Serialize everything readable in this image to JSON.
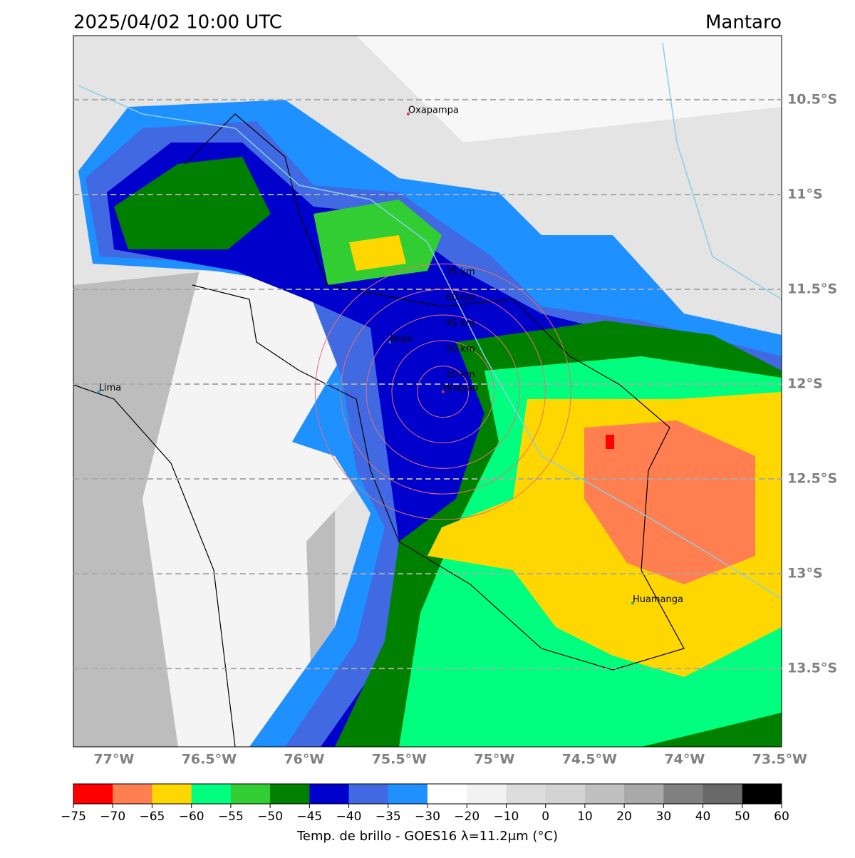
{
  "map": {
    "title": "2025/04/02 10:00 UTC",
    "region": "Mantaro",
    "xlim": [
      -77.213,
      -73.49
    ],
    "ylim": [
      -13.913,
      -10.162
    ],
    "xticks": [
      {
        "value": -77,
        "label": "77°W"
      },
      {
        "value": -76.5,
        "label": "76.5°W"
      },
      {
        "value": -76,
        "label": "76°W"
      },
      {
        "value": -75.5,
        "label": "75.5°W"
      },
      {
        "value": -75,
        "label": "75°W"
      },
      {
        "value": -74.5,
        "label": "74.5°W"
      },
      {
        "value": -74,
        "label": "74°W"
      },
      {
        "value": -73.5,
        "label": "73.5°W"
      }
    ],
    "yticks": [
      {
        "value": -10.5,
        "label": "10.5°S"
      },
      {
        "value": -11,
        "label": "11°S"
      },
      {
        "value": -11.5,
        "label": "11.5°S"
      },
      {
        "value": -12,
        "label": "12°S"
      },
      {
        "value": -12.5,
        "label": "12.5°S"
      },
      {
        "value": -13,
        "label": "13°S"
      },
      {
        "value": -13.5,
        "label": "13.5°S"
      }
    ],
    "grid": true,
    "places": [
      {
        "name": "Oxapampa",
        "lon": -75.453,
        "lat": -10.575,
        "color": "#e03030"
      },
      {
        "name": "Jauja",
        "lon": -75.547,
        "lat": -11.78,
        "color": "#3aa0a0"
      },
      {
        "name": "Lima",
        "lon": -77.079,
        "lat": -12.04,
        "color": "#3aa0a0"
      },
      {
        "name": "Huayao",
        "lon": -75.27,
        "lat": -12.04,
        "color": "#e03030"
      },
      {
        "name": "Huamanga",
        "lon": -74.273,
        "lat": -13.155,
        "color": "#3aa0a0"
      }
    ],
    "rings": [
      {
        "value": 15,
        "label": "15 km"
      },
      {
        "value": 30,
        "label": "30 km"
      },
      {
        "value": 45,
        "label": "45 km"
      },
      {
        "value": 60,
        "label": "60 km"
      },
      {
        "value": 75,
        "label": "75 km"
      }
    ],
    "ring_color": "#e87070"
  },
  "colorbar": {
    "label": "Temp. de brillo - GOES16 λ=11.2μm (°C)",
    "ticks": [
      {
        "value": -75,
        "label": "−75"
      },
      {
        "value": -70,
        "label": "−70"
      },
      {
        "value": -65,
        "label": "−65"
      },
      {
        "value": -60,
        "label": "−60"
      },
      {
        "value": -55,
        "label": "−55"
      },
      {
        "value": -50,
        "label": "−50"
      },
      {
        "value": -45,
        "label": "−45"
      },
      {
        "value": -40,
        "label": "−40"
      },
      {
        "value": -35,
        "label": "−35"
      },
      {
        "value": -30,
        "label": "−30"
      },
      {
        "value": -20,
        "label": "−20"
      },
      {
        "value": -10,
        "label": "−10"
      },
      0,
      10,
      20,
      30,
      40,
      50,
      60
    ],
    "colors": [
      "#ff0000",
      "#ff7f50",
      "#ffd700",
      "#00ff7f",
      "#32cd32",
      "#008000",
      "#0000cd",
      "#4169e1",
      "#1e90ff",
      "#ffffff",
      "#f2f2f2",
      "#dcdcdc",
      "#d3d3d3",
      "#c0c0c0",
      "#a9a9a9",
      "#808080",
      "#696969",
      "#000000"
    ]
  }
}
